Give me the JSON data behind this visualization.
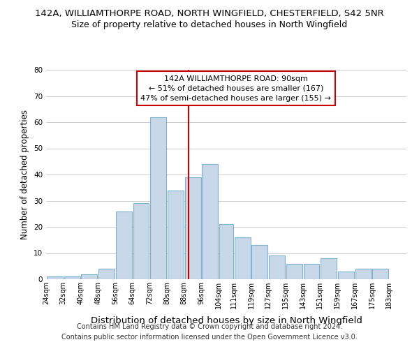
{
  "title1": "142A, WILLIAMTHORPE ROAD, NORTH WINGFIELD, CHESTERFIELD, S42 5NR",
  "title2": "Size of property relative to detached houses in North Wingfield",
  "xlabel": "Distribution of detached houses by size in North Wingfield",
  "ylabel": "Number of detached properties",
  "footer1": "Contains HM Land Registry data © Crown copyright and database right 2024.",
  "footer2": "Contains public sector information licensed under the Open Government Licence v3.0.",
  "bar_left_edges": [
    24,
    32,
    40,
    48,
    56,
    64,
    72,
    80,
    88,
    96,
    104,
    111,
    119,
    127,
    135,
    143,
    151,
    159,
    167,
    175
  ],
  "bar_heights": [
    1,
    1,
    2,
    4,
    26,
    29,
    62,
    34,
    39,
    44,
    21,
    16,
    13,
    9,
    6,
    6,
    8,
    3,
    4,
    4
  ],
  "bar_widths": [
    8,
    8,
    8,
    8,
    8,
    8,
    8,
    8,
    8,
    8,
    7,
    8,
    8,
    8,
    8,
    8,
    8,
    8,
    8,
    8
  ],
  "bar_color": "#c8d8e8",
  "bar_edgecolor": "#7fb3d0",
  "vline_x": 90,
  "vline_color": "#cc0000",
  "annotation_text": "142A WILLIAMTHORPE ROAD: 90sqm\n← 51% of detached houses are smaller (167)\n47% of semi-detached houses are larger (155) →",
  "annotation_box_edgecolor": "#cc0000",
  "annotation_box_facecolor": "#ffffff",
  "xlim": [
    24,
    191
  ],
  "ylim": [
    0,
    80
  ],
  "yticks": [
    0,
    10,
    20,
    30,
    40,
    50,
    60,
    70,
    80
  ],
  "xtick_labels": [
    "24sqm",
    "32sqm",
    "40sqm",
    "48sqm",
    "56sqm",
    "64sqm",
    "72sqm",
    "80sqm",
    "88sqm",
    "96sqm",
    "104sqm",
    "111sqm",
    "119sqm",
    "127sqm",
    "135sqm",
    "143sqm",
    "151sqm",
    "159sqm",
    "167sqm",
    "175sqm",
    "183sqm"
  ],
  "xtick_positions": [
    24,
    32,
    40,
    48,
    56,
    64,
    72,
    80,
    88,
    96,
    104,
    111,
    119,
    127,
    135,
    143,
    151,
    159,
    167,
    175,
    183
  ],
  "grid_color": "#cccccc",
  "background_color": "#ffffff",
  "title1_fontsize": 9.5,
  "title2_fontsize": 9,
  "ylabel_fontsize": 8.5,
  "xlabel_fontsize": 9.5,
  "footer_fontsize": 7,
  "annot_fontsize": 8
}
